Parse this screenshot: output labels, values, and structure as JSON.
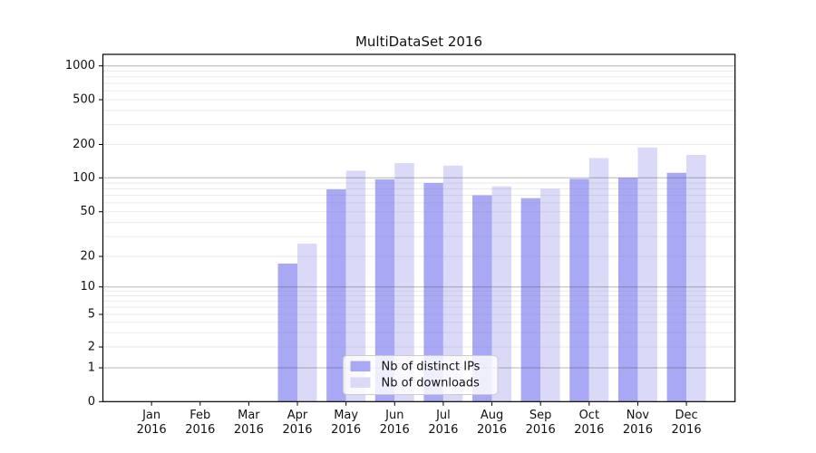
{
  "chart_data": {
    "type": "bar",
    "title": "MultiDataSet 2016",
    "categories": [
      "Jan",
      "Feb",
      "Mar",
      "Apr",
      "May",
      "Jun",
      "Jul",
      "Aug",
      "Sep",
      "Oct",
      "Nov",
      "Dec"
    ],
    "year_label": "2016",
    "series": [
      {
        "name": "Nb of distinct IPs",
        "color": "#a8a8f5",
        "values": [
          0,
          0,
          0,
          17,
          79,
          97,
          90,
          70,
          66,
          98,
          100,
          111
        ]
      },
      {
        "name": "Nb of downloads",
        "color": "#dadaf8",
        "values": [
          0,
          0,
          0,
          26,
          116,
          136,
          129,
          84,
          80,
          151,
          188,
          161
        ]
      }
    ],
    "xlabel": "",
    "ylabel": "",
    "y_axis": {
      "scale": "symlog",
      "tick_values": [
        0,
        1,
        2,
        5,
        10,
        20,
        50,
        100,
        200,
        500,
        1000
      ],
      "tick_labels": [
        "0",
        "1",
        "2",
        "5",
        "10",
        "20",
        "50",
        "100",
        "200",
        "500",
        "1000"
      ],
      "ylim": [
        0,
        1200
      ],
      "major_grid_values": [
        1,
        10,
        100,
        1000
      ]
    },
    "grid": {
      "enabled": true,
      "major_color": "#b2b2b2",
      "minor_color": "#e9e9e9"
    },
    "legend": {
      "position": "lower-center-left",
      "background": "#ffffff",
      "border_color": "#cccccc"
    },
    "colors": {
      "spine": "#000000",
      "text": "#111111",
      "background": "#ffffff"
    }
  }
}
